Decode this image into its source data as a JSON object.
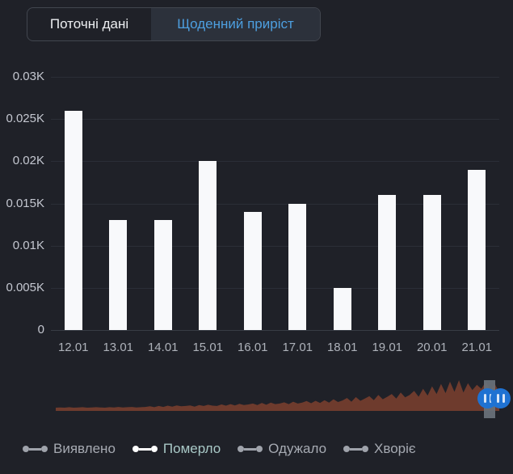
{
  "tabs": {
    "items": [
      {
        "label": "Поточні дані",
        "active": false
      },
      {
        "label": "Щоденний приріст",
        "active": true
      }
    ]
  },
  "chart_data": {
    "type": "bar",
    "title": "",
    "categories": [
      "12.01",
      "13.01",
      "14.01",
      "15.01",
      "16.01",
      "17.01",
      "18.01",
      "19.01",
      "20.01",
      "21.01"
    ],
    "series": [
      {
        "name": "Померло",
        "values_K": [
          0.026,
          0.013,
          0.013,
          0.02,
          0.014,
          0.015,
          0.005,
          0.016,
          0.016,
          0.019
        ]
      }
    ],
    "y_ticks": [
      {
        "label": "0.03K",
        "value": 0.03
      },
      {
        "label": "0.025K",
        "value": 0.025
      },
      {
        "label": "0.02K",
        "value": 0.02
      },
      {
        "label": "0.015K",
        "value": 0.015
      },
      {
        "label": "0.01K",
        "value": 0.01
      },
      {
        "label": "0.005K",
        "value": 0.005
      },
      {
        "label": "0",
        "value": 0
      }
    ],
    "ylim": [
      0,
      0.03
    ],
    "bar_color": "#f8f9fb",
    "grid": true,
    "legend_position": "bottom"
  },
  "brush": {
    "area_color": "#6e3b2d",
    "handle_color": "#1f72d2",
    "selection_color": "#687078",
    "profile": [
      0.1,
      0.11,
      0.1,
      0.12,
      0.1,
      0.11,
      0.12,
      0.1,
      0.11,
      0.12,
      0.11,
      0.1,
      0.12,
      0.11,
      0.13,
      0.11,
      0.12,
      0.13,
      0.11,
      0.12,
      0.13,
      0.15,
      0.12,
      0.16,
      0.13,
      0.17,
      0.14,
      0.18,
      0.15,
      0.16,
      0.18,
      0.14,
      0.19,
      0.16,
      0.2,
      0.17,
      0.16,
      0.21,
      0.17,
      0.22,
      0.18,
      0.23,
      0.19,
      0.21,
      0.24,
      0.19,
      0.26,
      0.2,
      0.27,
      0.22,
      0.24,
      0.28,
      0.22,
      0.3,
      0.24,
      0.27,
      0.32,
      0.25,
      0.33,
      0.26,
      0.35,
      0.27,
      0.38,
      0.29,
      0.34,
      0.42,
      0.3,
      0.45,
      0.33,
      0.4,
      0.48,
      0.35,
      0.52,
      0.38,
      0.46,
      0.55,
      0.4,
      0.6,
      0.44,
      0.52,
      0.65,
      0.46,
      0.72,
      0.5,
      0.8,
      0.55,
      0.88,
      0.58,
      0.95,
      0.62,
      1.0,
      0.6,
      0.9,
      0.68,
      0.85,
      0.72,
      0.95,
      0.66,
      0.88,
      0.6
    ]
  },
  "legend": {
    "items": [
      {
        "label": "Виявлено",
        "active": false
      },
      {
        "label": "Померло",
        "active": true
      },
      {
        "label": "Одужало",
        "active": false
      },
      {
        "label": "Хворіє",
        "active": false
      }
    ]
  },
  "colors": {
    "background": "#1f2128",
    "tab_active_bg": "#2c313b",
    "tab_active_text": "#4d9fe0",
    "gridline": "#2b2e37",
    "axis_label": "#c4c7d0",
    "legend_active_text": "#a9c9c7"
  }
}
